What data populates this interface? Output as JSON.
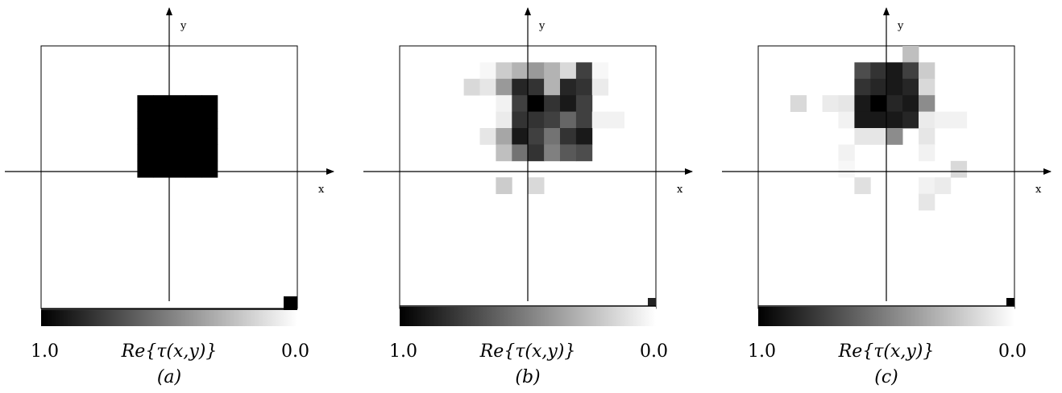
{
  "panels": [
    {
      "tag": "(a)",
      "chart_data": {
        "type": "heatmap",
        "xlabel": "x",
        "ylabel": "y",
        "colorbar": {
          "label": "Re{τ(x,y)}",
          "max_label": "1.0",
          "min_label": "0.0",
          "colormap": "grayscale, 1.0 = black, 0.0 = white"
        },
        "grid_size": 16,
        "cells": [
          [
            6,
            3,
            1
          ],
          [
            7,
            3,
            1
          ],
          [
            8,
            3,
            1
          ],
          [
            9,
            3,
            1
          ],
          [
            10,
            3,
            1
          ],
          [
            6,
            4,
            1
          ],
          [
            7,
            4,
            1
          ],
          [
            8,
            4,
            1
          ],
          [
            9,
            4,
            1
          ],
          [
            10,
            4,
            1
          ],
          [
            6,
            5,
            1
          ],
          [
            7,
            5,
            1
          ],
          [
            8,
            5,
            1
          ],
          [
            9,
            5,
            1
          ],
          [
            10,
            5,
            1
          ],
          [
            6,
            6,
            1
          ],
          [
            7,
            6,
            1
          ],
          [
            8,
            6,
            1
          ],
          [
            9,
            6,
            1
          ],
          [
            10,
            6,
            1
          ],
          [
            6,
            7,
            1
          ],
          [
            7,
            7,
            1
          ],
          [
            8,
            7,
            1
          ],
          [
            9,
            7,
            1
          ],
          [
            10,
            7,
            1
          ]
        ]
      }
    },
    {
      "tag": "(b)",
      "chart_data": {
        "type": "heatmap",
        "xlabel": "x",
        "ylabel": "y",
        "colorbar": {
          "label": "Re{τ(x,y)}",
          "max_label": "1.0",
          "min_label": "0.0",
          "colormap": "grayscale, 1.0 = black, 0.0 = white"
        },
        "grid_size": 16,
        "cells": [
          [
            5,
            1,
            0.03
          ],
          [
            6,
            1,
            0.2
          ],
          [
            7,
            1,
            0.3
          ],
          [
            8,
            1,
            0.4
          ],
          [
            9,
            1,
            0.3
          ],
          [
            10,
            1,
            0.15
          ],
          [
            11,
            1,
            0.75
          ],
          [
            12,
            1,
            0.03
          ],
          [
            4,
            2,
            0.15
          ],
          [
            5,
            2,
            0.1
          ],
          [
            6,
            2,
            0.4
          ],
          [
            7,
            2,
            0.85
          ],
          [
            8,
            2,
            0.8
          ],
          [
            9,
            2,
            0.3
          ],
          [
            10,
            2,
            0.85
          ],
          [
            11,
            2,
            0.8
          ],
          [
            12,
            2,
            0.08
          ],
          [
            6,
            3,
            0.05
          ],
          [
            7,
            3,
            0.75
          ],
          [
            8,
            3,
            1.0
          ],
          [
            9,
            3,
            0.8
          ],
          [
            10,
            3,
            0.9
          ],
          [
            11,
            3,
            0.75
          ],
          [
            6,
            4,
            0.08
          ],
          [
            7,
            4,
            0.8
          ],
          [
            8,
            4,
            0.8
          ],
          [
            9,
            4,
            0.75
          ],
          [
            10,
            4,
            0.6
          ],
          [
            11,
            4,
            0.75
          ],
          [
            12,
            4,
            0.05
          ],
          [
            13,
            4,
            0.05
          ],
          [
            5,
            5,
            0.1
          ],
          [
            6,
            5,
            0.35
          ],
          [
            7,
            5,
            0.9
          ],
          [
            8,
            5,
            0.75
          ],
          [
            9,
            5,
            0.55
          ],
          [
            10,
            5,
            0.8
          ],
          [
            11,
            5,
            0.9
          ],
          [
            6,
            6,
            0.25
          ],
          [
            7,
            6,
            0.55
          ],
          [
            8,
            6,
            0.8
          ],
          [
            9,
            6,
            0.5
          ],
          [
            10,
            6,
            0.65
          ],
          [
            11,
            6,
            0.7
          ],
          [
            6,
            8,
            0.2
          ],
          [
            8,
            8,
            0.15
          ]
        ]
      }
    },
    {
      "tag": "(c)",
      "chart_data": {
        "type": "heatmap",
        "xlabel": "x",
        "ylabel": "y",
        "colorbar": {
          "label": "Re{τ(x,y)}",
          "max_label": "1.0",
          "min_label": "0.0",
          "colormap": "grayscale, 1.0 = black, 0.0 = white"
        },
        "grid_size": 16,
        "cells": [
          [
            9,
            0,
            0.25
          ],
          [
            6,
            1,
            0.7
          ],
          [
            7,
            1,
            0.8
          ],
          [
            8,
            1,
            0.9
          ],
          [
            9,
            1,
            0.75
          ],
          [
            10,
            1,
            0.2
          ],
          [
            6,
            2,
            0.8
          ],
          [
            7,
            2,
            0.85
          ],
          [
            8,
            2,
            0.9
          ],
          [
            9,
            2,
            0.85
          ],
          [
            10,
            2,
            0.15
          ],
          [
            2,
            3,
            0.15
          ],
          [
            4,
            3,
            0.08
          ],
          [
            5,
            3,
            0.1
          ],
          [
            6,
            3,
            0.9
          ],
          [
            7,
            3,
            1.0
          ],
          [
            8,
            3,
            0.85
          ],
          [
            9,
            3,
            0.9
          ],
          [
            10,
            3,
            0.45
          ],
          [
            5,
            4,
            0.05
          ],
          [
            6,
            4,
            0.9
          ],
          [
            7,
            4,
            0.9
          ],
          [
            8,
            4,
            0.9
          ],
          [
            9,
            4,
            0.85
          ],
          [
            10,
            4,
            0.08
          ],
          [
            11,
            4,
            0.05
          ],
          [
            12,
            4,
            0.05
          ],
          [
            6,
            5,
            0.1
          ],
          [
            7,
            5,
            0.1
          ],
          [
            8,
            5,
            0.45
          ],
          [
            10,
            5,
            0.1
          ],
          [
            5,
            6,
            0.05
          ],
          [
            10,
            6,
            0.05
          ],
          [
            5,
            7,
            0.03
          ],
          [
            12,
            7,
            0.15
          ],
          [
            6,
            8,
            0.12
          ],
          [
            10,
            8,
            0.05
          ],
          [
            11,
            8,
            0.08
          ],
          [
            10,
            9,
            0.1
          ]
        ]
      }
    }
  ]
}
